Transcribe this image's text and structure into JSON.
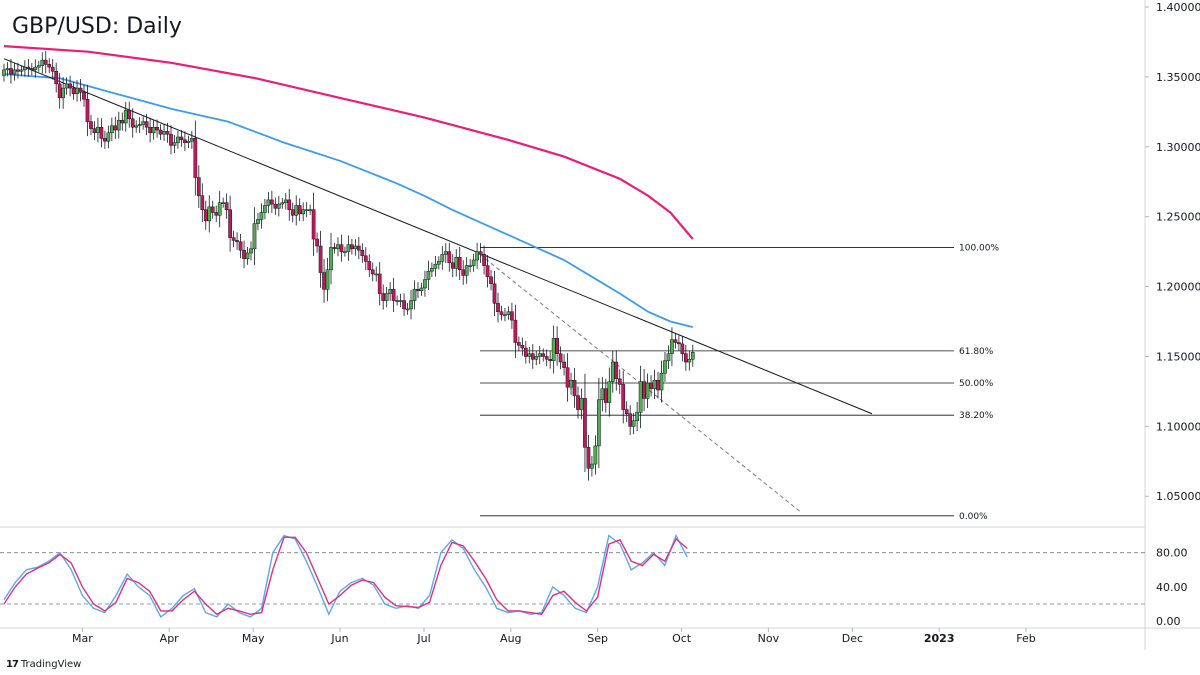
{
  "title": "GBP/USD: Daily",
  "brand": "TradingView",
  "chart_data": {
    "type": "candlestick",
    "title": "GBP/USD: Daily",
    "price_axis": {
      "ticks": [
        1.05,
        1.1,
        1.15,
        1.2,
        1.25,
        1.3,
        1.35,
        1.4
      ],
      "tick_labels": [
        "1.05000",
        "1.10000",
        "1.15000",
        "1.20000",
        "1.25000",
        "1.30000",
        "1.35000",
        "1.40000"
      ],
      "range": [
        1.028,
        1.405
      ]
    },
    "time_axis": {
      "labels": [
        "Mar",
        "Apr",
        "May",
        "Jun",
        "Jul",
        "Aug",
        "Sep",
        "Oct",
        "Nov",
        "Dec",
        "2023",
        "Feb"
      ],
      "label_days": [
        28,
        59,
        89,
        120,
        150,
        181,
        212,
        242,
        273,
        303,
        334,
        365
      ],
      "range_days": [
        0,
        392
      ]
    },
    "colors": {
      "up": "#4caf50",
      "down": "#c2185b",
      "ma_fast": "#3a9bf0",
      "ma_slow": "#e91e78",
      "trendline": "#131722",
      "osc_k": "#5aa9f0",
      "osc_d": "#e0307f"
    },
    "closes": [
      1.355,
      1.356,
      1.352,
      1.355,
      1.354,
      1.355,
      1.357,
      1.356,
      1.355,
      1.357,
      1.358,
      1.362,
      1.359,
      1.357,
      1.354,
      1.345,
      1.335,
      1.342,
      1.345,
      1.342,
      1.338,
      1.342,
      1.339,
      1.334,
      1.318,
      1.313,
      1.31,
      1.314,
      1.306,
      1.304,
      1.31,
      1.315,
      1.312,
      1.319,
      1.317,
      1.326,
      1.32,
      1.314,
      1.315,
      1.316,
      1.318,
      1.314,
      1.31,
      1.314,
      1.312,
      1.309,
      1.311,
      1.309,
      1.301,
      1.303,
      1.307,
      1.305,
      1.303,
      1.304,
      1.306,
      1.278,
      1.265,
      1.255,
      1.247,
      1.257,
      1.253,
      1.251,
      1.26,
      1.26,
      1.255,
      1.235,
      1.233,
      1.232,
      1.226,
      1.22,
      1.224,
      1.227,
      1.245,
      1.248,
      1.253,
      1.258,
      1.262,
      1.259,
      1.256,
      1.259,
      1.26,
      1.262,
      1.255,
      1.251,
      1.258,
      1.252,
      1.255,
      1.255,
      1.255,
      1.234,
      1.229,
      1.21,
      1.198,
      1.212,
      1.228,
      1.227,
      1.23,
      1.225,
      1.225,
      1.23,
      1.227,
      1.229,
      1.226,
      1.222,
      1.218,
      1.212,
      1.209,
      1.209,
      1.195,
      1.19,
      1.195,
      1.198,
      1.19,
      1.19,
      1.19,
      1.184,
      1.184,
      1.19,
      1.198,
      1.197,
      1.199,
      1.205,
      1.211,
      1.213,
      1.216,
      1.218,
      1.223,
      1.225,
      1.217,
      1.213,
      1.221,
      1.212,
      1.208,
      1.215,
      1.215,
      1.219,
      1.225,
      1.223,
      1.215,
      1.207,
      1.202,
      1.188,
      1.182,
      1.18,
      1.18,
      1.182,
      1.176,
      1.16,
      1.158,
      1.156,
      1.15,
      1.152,
      1.148,
      1.15,
      1.152,
      1.15,
      1.148,
      1.147,
      1.163,
      1.152,
      1.146,
      1.142,
      1.128,
      1.133,
      1.122,
      1.112,
      1.12,
      1.085,
      1.07,
      1.073,
      1.086,
      1.119,
      1.127,
      1.117,
      1.132,
      1.146,
      1.134,
      1.13,
      1.112,
      1.109,
      1.1,
      1.104,
      1.11,
      1.132,
      1.12,
      1.131,
      1.127,
      1.133,
      1.126,
      1.138,
      1.147,
      1.152,
      1.162,
      1.16,
      1.159,
      1.152,
      1.146,
      1.148,
      1.153
    ],
    "ma_fast": [
      [
        0,
        1.352
      ],
      [
        20,
        1.349
      ],
      [
        40,
        1.338
      ],
      [
        60,
        1.327
      ],
      [
        80,
        1.318
      ],
      [
        100,
        1.303
      ],
      [
        120,
        1.29
      ],
      [
        140,
        1.274
      ],
      [
        150,
        1.265
      ],
      [
        160,
        1.255
      ],
      [
        170,
        1.246
      ],
      [
        180,
        1.237
      ],
      [
        190,
        1.228
      ],
      [
        200,
        1.219
      ],
      [
        210,
        1.207
      ],
      [
        220,
        1.195
      ],
      [
        230,
        1.182
      ],
      [
        238,
        1.175
      ],
      [
        246,
        1.171
      ]
    ],
    "ma_slow": [
      [
        0,
        1.372
      ],
      [
        30,
        1.368
      ],
      [
        60,
        1.36
      ],
      [
        90,
        1.349
      ],
      [
        120,
        1.335
      ],
      [
        150,
        1.321
      ],
      [
        180,
        1.305
      ],
      [
        200,
        1.293
      ],
      [
        220,
        1.277
      ],
      [
        230,
        1.265
      ],
      [
        238,
        1.253
      ],
      [
        246,
        1.234
      ]
    ],
    "trendline": [
      [
        0,
        1.363
      ],
      [
        310,
        1.109
      ]
    ],
    "secondary_trendline": [
      [
        170,
        1.223
      ],
      [
        285,
        1.038
      ]
    ],
    "fibonacci": {
      "start_day": 170,
      "end_day": 285,
      "levels": [
        {
          "label": "100.00%",
          "price": 1.228
        },
        {
          "label": "61.80%",
          "price": 1.154
        },
        {
          "label": "50.00%",
          "price": 1.131
        },
        {
          "label": "38.20%",
          "price": 1.108
        },
        {
          "label": "0.00%",
          "price": 1.036
        }
      ]
    },
    "oscillator": {
      "ticks": [
        0,
        40,
        80
      ],
      "tick_labels": [
        "0.00",
        "40.00",
        "80.00"
      ],
      "levels": [
        20,
        80
      ],
      "range": [
        -8,
        110
      ],
      "k": [
        [
          0,
          25
        ],
        [
          4,
          45
        ],
        [
          8,
          60
        ],
        [
          12,
          63
        ],
        [
          16,
          70
        ],
        [
          20,
          80
        ],
        [
          24,
          60
        ],
        [
          28,
          30
        ],
        [
          32,
          15
        ],
        [
          36,
          10
        ],
        [
          40,
          30
        ],
        [
          44,
          55
        ],
        [
          48,
          40
        ],
        [
          52,
          30
        ],
        [
          56,
          5
        ],
        [
          60,
          15
        ],
        [
          64,
          30
        ],
        [
          68,
          38
        ],
        [
          72,
          10
        ],
        [
          76,
          5
        ],
        [
          80,
          20
        ],
        [
          84,
          10
        ],
        [
          88,
          5
        ],
        [
          92,
          15
        ],
        [
          96,
          80
        ],
        [
          100,
          100
        ],
        [
          104,
          96
        ],
        [
          108,
          70
        ],
        [
          112,
          40
        ],
        [
          116,
          8
        ],
        [
          120,
          35
        ],
        [
          124,
          45
        ],
        [
          128,
          50
        ],
        [
          132,
          42
        ],
        [
          136,
          20
        ],
        [
          140,
          15
        ],
        [
          144,
          18
        ],
        [
          148,
          15
        ],
        [
          152,
          30
        ],
        [
          156,
          80
        ],
        [
          160,
          95
        ],
        [
          164,
          85
        ],
        [
          168,
          60
        ],
        [
          172,
          40
        ],
        [
          176,
          15
        ],
        [
          180,
          10
        ],
        [
          184,
          12
        ],
        [
          188,
          8
        ],
        [
          192,
          10
        ],
        [
          196,
          40
        ],
        [
          200,
          30
        ],
        [
          204,
          15
        ],
        [
          208,
          10
        ],
        [
          212,
          40
        ],
        [
          216,
          100
        ],
        [
          220,
          90
        ],
        [
          224,
          60
        ],
        [
          228,
          68
        ],
        [
          232,
          80
        ],
        [
          236,
          65
        ],
        [
          240,
          100
        ],
        [
          244,
          75
        ]
      ],
      "d": [
        [
          0,
          20
        ],
        [
          4,
          40
        ],
        [
          8,
          55
        ],
        [
          12,
          62
        ],
        [
          16,
          68
        ],
        [
          20,
          78
        ],
        [
          24,
          68
        ],
        [
          28,
          40
        ],
        [
          32,
          20
        ],
        [
          36,
          12
        ],
        [
          40,
          22
        ],
        [
          44,
          50
        ],
        [
          48,
          45
        ],
        [
          52,
          35
        ],
        [
          56,
          12
        ],
        [
          60,
          12
        ],
        [
          64,
          25
        ],
        [
          68,
          35
        ],
        [
          72,
          20
        ],
        [
          76,
          8
        ],
        [
          80,
          15
        ],
        [
          84,
          12
        ],
        [
          88,
          8
        ],
        [
          92,
          10
        ],
        [
          96,
          60
        ],
        [
          100,
          98
        ],
        [
          104,
          98
        ],
        [
          108,
          80
        ],
        [
          112,
          50
        ],
        [
          116,
          20
        ],
        [
          120,
          30
        ],
        [
          124,
          42
        ],
        [
          128,
          48
        ],
        [
          132,
          45
        ],
        [
          136,
          28
        ],
        [
          140,
          18
        ],
        [
          144,
          17
        ],
        [
          148,
          16
        ],
        [
          152,
          22
        ],
        [
          156,
          65
        ],
        [
          160,
          92
        ],
        [
          164,
          88
        ],
        [
          168,
          70
        ],
        [
          172,
          50
        ],
        [
          176,
          25
        ],
        [
          180,
          12
        ],
        [
          184,
          12
        ],
        [
          188,
          10
        ],
        [
          192,
          8
        ],
        [
          196,
          30
        ],
        [
          200,
          35
        ],
        [
          204,
          22
        ],
        [
          208,
          12
        ],
        [
          212,
          28
        ],
        [
          216,
          90
        ],
        [
          220,
          95
        ],
        [
          224,
          70
        ],
        [
          228,
          65
        ],
        [
          232,
          78
        ],
        [
          236,
          70
        ],
        [
          240,
          96
        ],
        [
          244,
          85
        ]
      ]
    }
  }
}
